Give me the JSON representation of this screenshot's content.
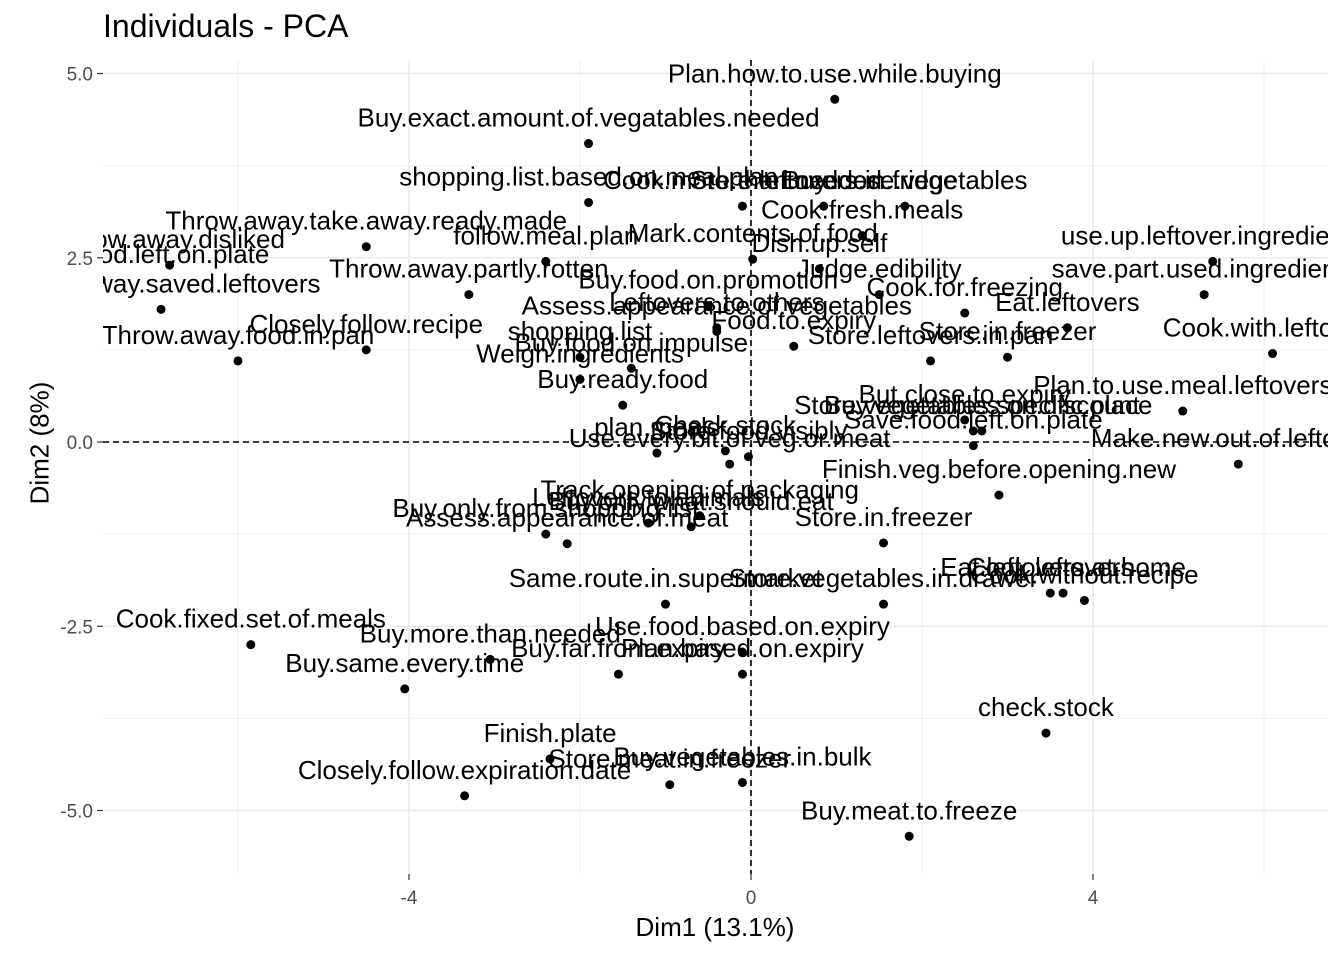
{
  "chart_data": {
    "type": "scatter",
    "title": "Individuals - PCA",
    "xlabel": "Dim1 (13.1%)",
    "ylabel": "Dim2 (8%)",
    "xlim": [
      -7.6,
      6.5
    ],
    "ylim": [
      -5.9,
      5.2
    ],
    "x_ticks": [
      -4,
      0,
      4
    ],
    "y_ticks": [
      -5.0,
      -2.5,
      0.0,
      2.5,
      5.0
    ],
    "x_tick_labels": [
      "-4",
      "0",
      "4"
    ],
    "y_tick_labels": [
      "-5.0",
      "-2.5",
      "0.0",
      "2.5",
      "5.0"
    ],
    "grid": true,
    "reference_lines": {
      "x": 0,
      "y": 0,
      "style": "dashed"
    },
    "points": [
      {
        "label": "Plan.how.to.use.while.buying",
        "x": 0.98,
        "y": 4.65
      },
      {
        "label": "Buy.exact.amount.of.vegatables.needed",
        "x": -1.9,
        "y": 4.05
      },
      {
        "label": "shopping.list.based.on.meal.plan",
        "x": -1.9,
        "y": 3.25
      },
      {
        "label": "Cook.more.than.needed",
        "x": -0.1,
        "y": 3.2
      },
      {
        "label": "Store.leftovers.in.fridge",
        "x": 0.85,
        "y": 3.2
      },
      {
        "label": "Buy.loose.vegetables",
        "x": 1.8,
        "y": 3.2
      },
      {
        "label": "Throw.away.take.away.ready.made",
        "x": -4.5,
        "y": 2.65
      },
      {
        "label": "Throw.away.disliked",
        "x": -6.8,
        "y": 2.4
      },
      {
        "label": "follow.meal.plan",
        "x": -2.4,
        "y": 2.45
      },
      {
        "label": "Cook.fresh.meals",
        "x": 1.3,
        "y": 2.8
      },
      {
        "label": "Mark.contents.of.food",
        "x": 0.02,
        "y": 2.48
      },
      {
        "label": "use.up.leftover.ingredients",
        "x": 5.4,
        "y": 2.45
      },
      {
        "label": "save.part.used.ingredients",
        "x": 5.3,
        "y": 2.0
      },
      {
        "label": "Throw.away.food.left.on.plate",
        "x": -7.6,
        "y": 2.2
      },
      {
        "label": "Throw.away.partly.rotten",
        "x": -3.3,
        "y": 2.0
      },
      {
        "label": "Dish.up.self",
        "x": 0.8,
        "y": 2.35
      },
      {
        "label": "Judge.edibility",
        "x": 1.5,
        "y": 2.0
      },
      {
        "label": "Buy.food.on.promotion",
        "x": -0.5,
        "y": 1.85
      },
      {
        "label": "Cook.for.freezing",
        "x": 2.5,
        "y": 1.75
      },
      {
        "label": "Assess.appearance.of.vegetables",
        "x": -0.4,
        "y": 1.5
      },
      {
        "label": "Eat.leftovers",
        "x": 3.7,
        "y": 1.55
      },
      {
        "label": "Throw.away.saved.leftovers",
        "x": -6.9,
        "y": 1.8
      },
      {
        "label": "Closely.follow.recipe",
        "x": -4.5,
        "y": 1.25
      },
      {
        "label": "Throw.away.food.in.pan",
        "x": -6.0,
        "y": 1.1
      },
      {
        "label": "Leftovers.to.others",
        "x": -0.4,
        "y": 1.55
      },
      {
        "label": "Food.to.expiry",
        "x": 0.5,
        "y": 1.3
      },
      {
        "label": "Store.leftovers.in.pan",
        "x": 2.1,
        "y": 1.1
      },
      {
        "label": "Store.in.freezer",
        "x": 3.0,
        "y": 1.15
      },
      {
        "label": "Buy.food.on.impulse",
        "x": -1.4,
        "y": 1.0
      },
      {
        "label": "Cook.with.leftovers",
        "x": 6.1,
        "y": 1.2
      },
      {
        "label": "shopping.list",
        "x": -2.0,
        "y": 1.15
      },
      {
        "label": "Weigh.ingredients",
        "x": -2.0,
        "y": 0.85
      },
      {
        "label": "Plan.to.use.meal.leftovers",
        "x": 5.05,
        "y": 0.42
      },
      {
        "label": "But.close.to.expiry",
        "x": 2.5,
        "y": 0.3
      },
      {
        "label": "Buy.vegetables.on.discount",
        "x": 2.7,
        "y": 0.15
      },
      {
        "label": "Buy.ready.food",
        "x": -1.5,
        "y": 0.5
      },
      {
        "label": "plan.meals",
        "x": -1.1,
        "y": -0.15
      },
      {
        "label": "Check.stock",
        "x": -0.3,
        "y": -0.12
      },
      {
        "label": "Store.vegetables.specific.place",
        "x": 2.6,
        "y": 0.15
      },
      {
        "label": "Save.food.left.on.plate",
        "x": 2.6,
        "y": -0.05
      },
      {
        "label": "Make.new.out.of.leftovers",
        "x": 5.7,
        "y": -0.3
      },
      {
        "label": "Store.food.visibly",
        "x": -0.03,
        "y": -0.2
      },
      {
        "label": "Finish.veg.before.opening.new",
        "x": 2.9,
        "y": -0.72
      },
      {
        "label": "Use.every.bit.of.veg.or.meat",
        "x": -0.25,
        "y": -0.3
      },
      {
        "label": "Track.opening.of.packaging",
        "x": -0.6,
        "y": -1.0
      },
      {
        "label": "Leftovers.to.animals",
        "x": -1.2,
        "y": -1.1
      },
      {
        "label": "Buy.only.what.should.eat",
        "x": -0.7,
        "y": -1.15
      },
      {
        "label": "Buy.only.from.shopping.list",
        "x": -2.4,
        "y": -1.25
      },
      {
        "label": "Store.in.freezer",
        "x": 1.55,
        "y": -1.37
      },
      {
        "label": "Assess.appearance.of.meat",
        "x": -2.15,
        "y": -1.38
      },
      {
        "label": "Cook.leftovers",
        "x": 3.5,
        "y": -2.05
      },
      {
        "label": "Eat.leftovers.at.home",
        "x": 3.65,
        "y": -2.05
      },
      {
        "label": "Cook.without.recipe",
        "x": 3.9,
        "y": -2.15
      },
      {
        "label": "Same.route.in.supermarket",
        "x": -1.0,
        "y": -2.2
      },
      {
        "label": "Store.vegetables.in.drawer",
        "x": 1.55,
        "y": -2.2
      },
      {
        "label": "Cook.fixed.set.of.meals",
        "x": -5.85,
        "y": -2.75
      },
      {
        "label": "Buy.more.than.needed",
        "x": -3.05,
        "y": -2.95
      },
      {
        "label": "Use.food.based.on.expiry",
        "x": -0.1,
        "y": -2.85
      },
      {
        "label": "Buy.far.from.expiry",
        "x": -1.55,
        "y": -3.15
      },
      {
        "label": "Plan.based.on.expiry",
        "x": -0.1,
        "y": -3.15
      },
      {
        "label": "Buy.same.every.time",
        "x": -4.05,
        "y": -3.35
      },
      {
        "label": "check.stock",
        "x": 3.45,
        "y": -3.95
      },
      {
        "label": "Finish.plate",
        "x": -2.35,
        "y": -4.3
      },
      {
        "label": "Store.meat.in.freezer",
        "x": -0.95,
        "y": -4.65
      },
      {
        "label": "Buy.vegetables.in.bulk",
        "x": -0.1,
        "y": -4.62
      },
      {
        "label": "Closely.follow.expiration.date",
        "x": -3.35,
        "y": -4.8
      },
      {
        "label": "Buy.meat.to.freeze",
        "x": 1.85,
        "y": -5.35
      }
    ]
  }
}
